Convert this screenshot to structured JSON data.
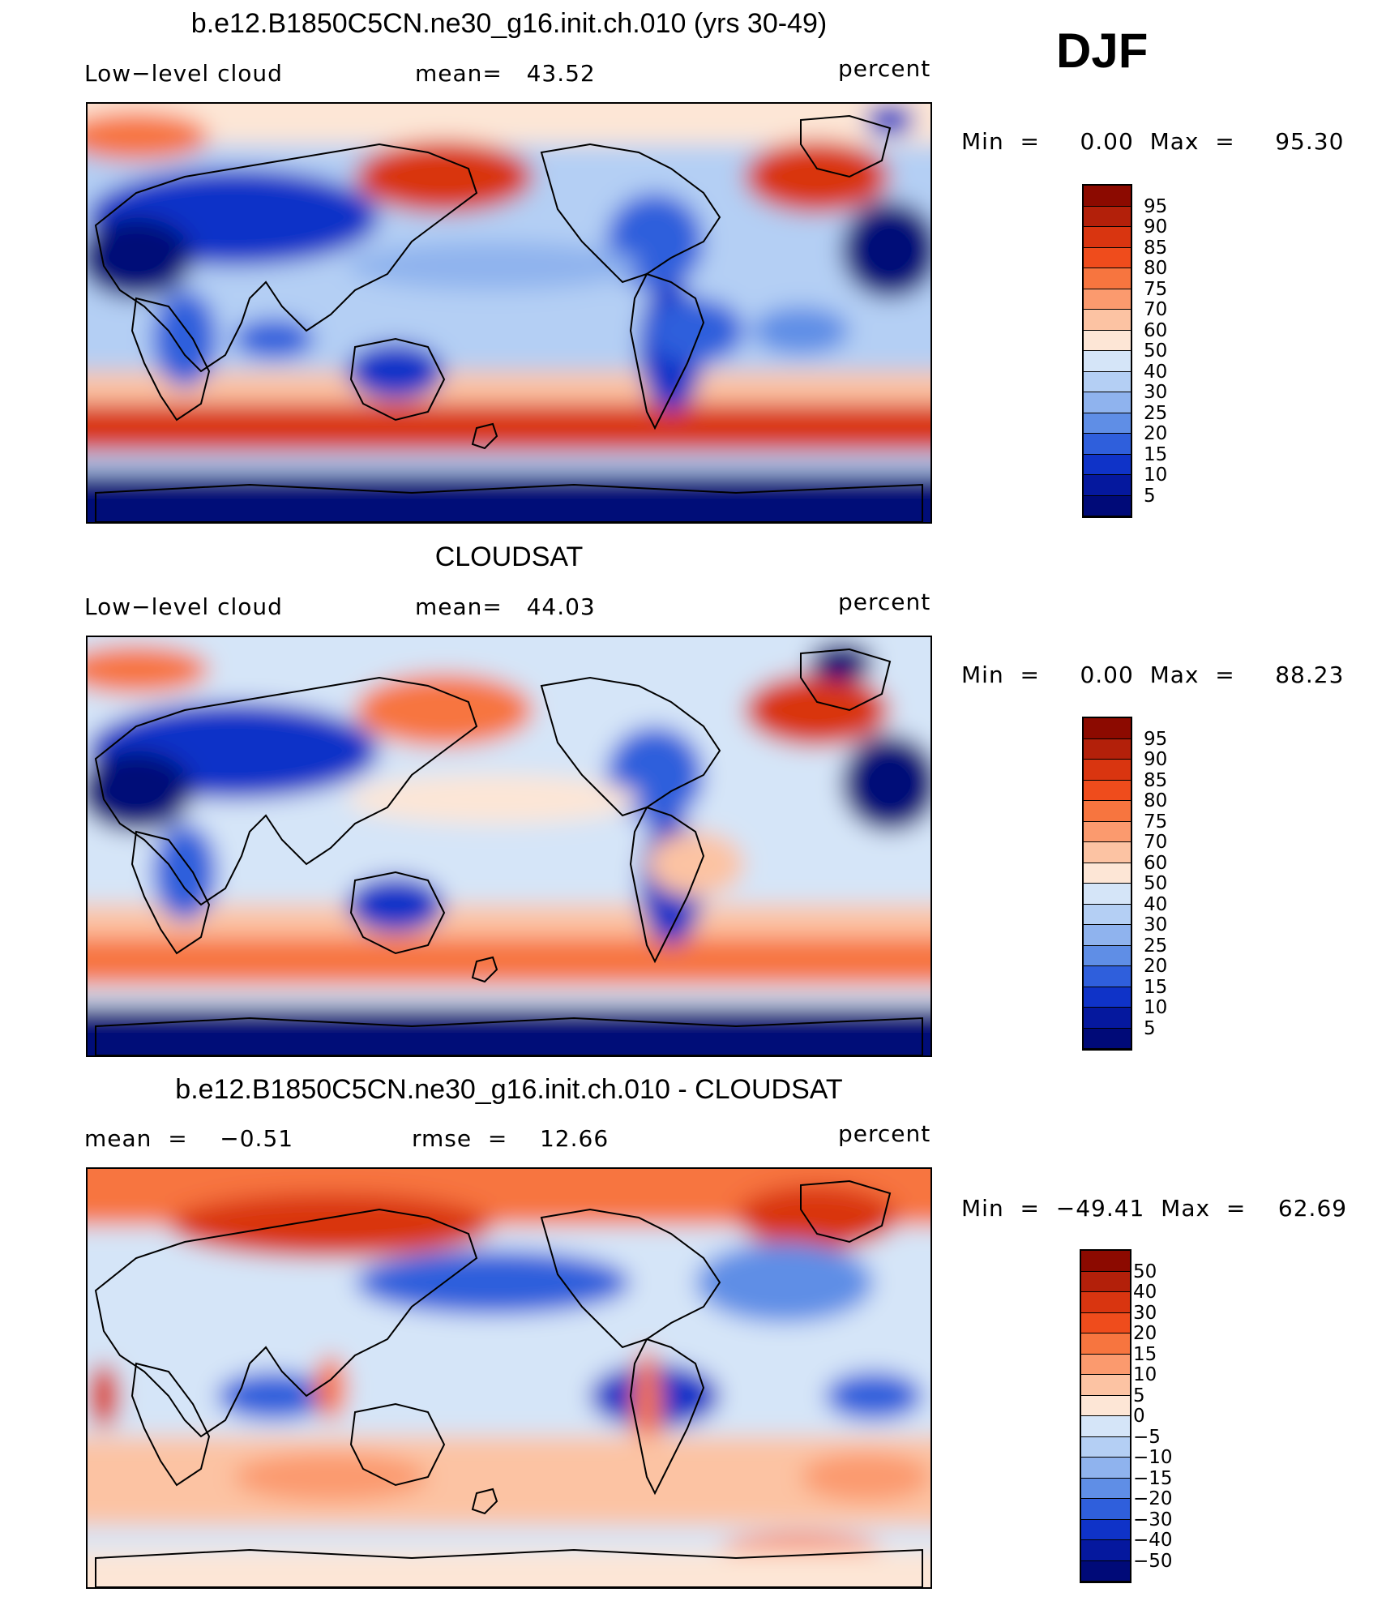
{
  "season": "DJF",
  "panels": [
    {
      "id": "model",
      "title": "b.e12.B1850C5CN.ne30_g16.init.ch.010 (yrs 30-49)",
      "left_label": "Low−level cloud",
      "center_label": "mean=   43.52",
      "units": "percent",
      "minmax": "Min  =     0.00  Max  =     95.30",
      "colorbar_labels": [
        "95",
        "90",
        "85",
        "80",
        "75",
        "70",
        "60",
        "50",
        "40",
        "30",
        "25",
        "20",
        "15",
        "10",
        "5"
      ]
    },
    {
      "id": "obs",
      "title": "CLOUDSAT",
      "left_label": "Low−level cloud",
      "center_label": "mean=   44.03",
      "units": "percent",
      "minmax": "Min  =     0.00  Max  =     88.23",
      "colorbar_labels": [
        "95",
        "90",
        "85",
        "80",
        "75",
        "70",
        "60",
        "50",
        "40",
        "30",
        "25",
        "20",
        "15",
        "10",
        "5"
      ]
    },
    {
      "id": "diff",
      "title": "b.e12.B1850C5CN.ne30_g16.init.ch.010 - CLOUDSAT",
      "left_label": "mean  =    −0.51",
      "center_label": "rmse  =    12.66",
      "units": "percent",
      "minmax": "Min  =  −49.41  Max  =    62.69",
      "colorbar_labels": [
        "50",
        "40",
        "30",
        "20",
        "15",
        "10",
        "5",
        "0",
        "−5",
        "−10",
        "−15",
        "−20",
        "−30",
        "−40",
        "−50"
      ]
    }
  ],
  "colors": {
    "scale": [
      "#8c0a00",
      "#b3200a",
      "#d93510",
      "#ef4c1c",
      "#f7753f",
      "#fb9a6e",
      "#fcc3a3",
      "#fde6d6",
      "#d5e5f8",
      "#b4cff4",
      "#8fb3ee",
      "#5f8ee6",
      "#2f5fdc",
      "#0f33c8",
      "#05189e",
      "#000a78"
    ]
  }
}
